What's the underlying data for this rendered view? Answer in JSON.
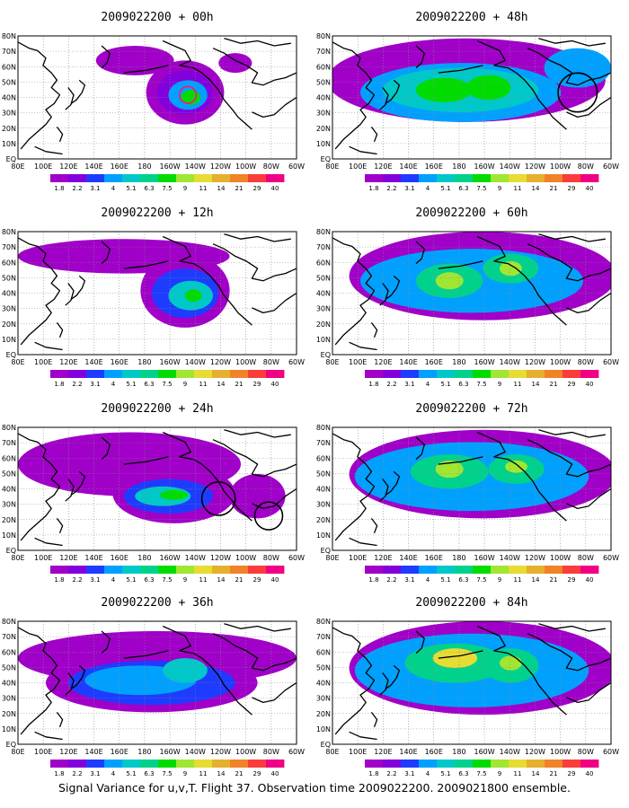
{
  "figure": {
    "caption": "Signal Variance for u,v,T. Flight 37. Observation time 2009022200. 2009021800 ensemble."
  },
  "panels": [
    {
      "title": "2009022200 + 00h"
    },
    {
      "title": "2009022200 + 48h"
    },
    {
      "title": "2009022200 + 12h"
    },
    {
      "title": "2009022200 + 60h"
    },
    {
      "title": "2009022200 + 24h"
    },
    {
      "title": "2009022200 + 72h"
    },
    {
      "title": "2009022200 + 36h"
    },
    {
      "title": "2009022200 + 84h"
    }
  ],
  "axes": {
    "lon_labels": [
      "80E",
      "100E",
      "120E",
      "140E",
      "160E",
      "180",
      "160W",
      "140W",
      "120W",
      "100W",
      "80W",
      "60W"
    ],
    "lat_labels": [
      "80N",
      "70N",
      "60N",
      "50N",
      "40N",
      "30N",
      "20N",
      "10N",
      "EQ"
    ]
  },
  "colorbar": {
    "labels": [
      "1.8",
      "2.2",
      "3.1",
      "4",
      "5.1",
      "6.3",
      "7.5",
      "9",
      "11",
      "14",
      "21",
      "29",
      "40"
    ],
    "colors": [
      "#a000c8",
      "#8200dc",
      "#1e3cff",
      "#00a0ff",
      "#00c8c8",
      "#00d28c",
      "#00dc00",
      "#a0e632",
      "#e6dc32",
      "#e6af2d",
      "#f08228",
      "#fa3c3c",
      "#f00082"
    ]
  },
  "fill_colors": {
    "level1": "#a000c8",
    "level2": "#8200dc",
    "level3": "#1e3cff",
    "level4": "#00a0ff",
    "level5": "#00c8c8",
    "level6": "#00d28c",
    "level7": "#00dc00",
    "level8": "#a0e632",
    "level9": "#e6dc32"
  }
}
